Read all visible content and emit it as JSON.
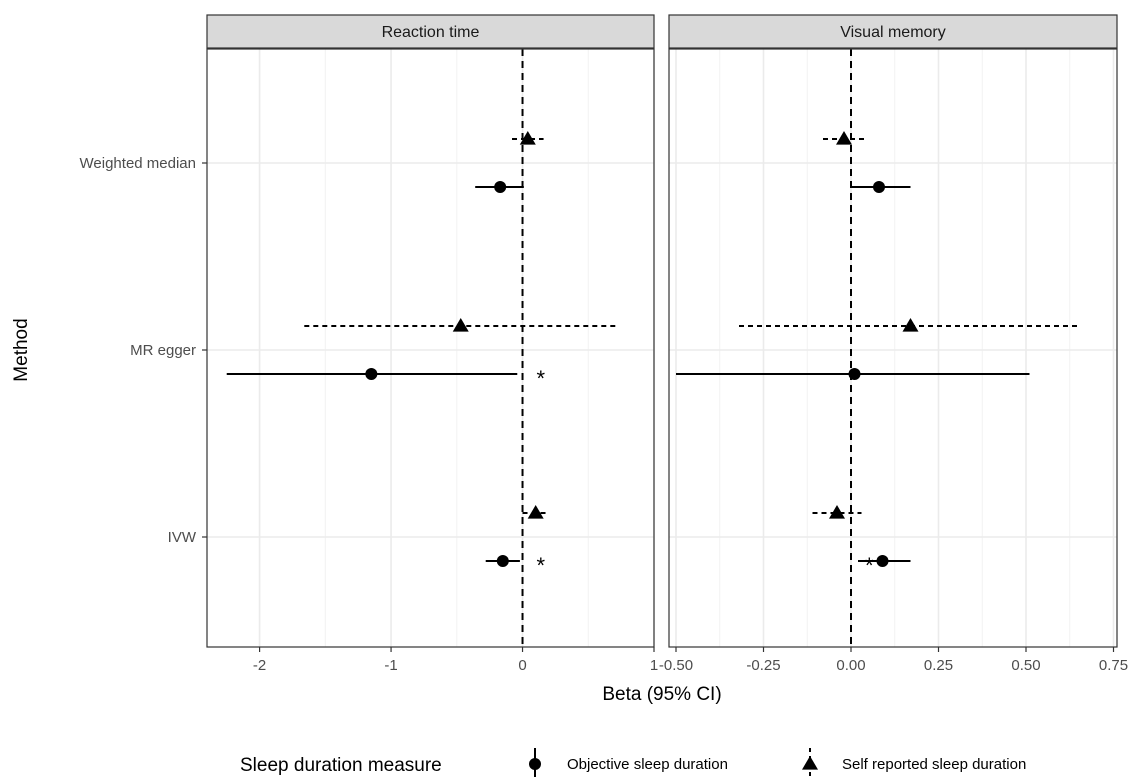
{
  "chart_data": {
    "type": "forest",
    "ylabel": "Method",
    "xlabel": "Beta (95% CI)",
    "methods": [
      "Weighted median",
      "MR egger",
      "IVW"
    ],
    "legend": {
      "title": "Sleep duration measure",
      "placement": "bottom",
      "entries": [
        {
          "key": "objective",
          "label": "Objective sleep duration",
          "marker": "circle",
          "line": "solid"
        },
        {
          "key": "self",
          "label": "Self reported sleep duration",
          "marker": "triangle",
          "line": "dashed"
        }
      ]
    },
    "panels": [
      {
        "title": "Reaction time",
        "xlim": [
          -2.4,
          1.0
        ],
        "ticks": [
          -2,
          -1,
          0,
          1
        ],
        "tick_labels": [
          "-2",
          "-1",
          "0",
          "1"
        ],
        "points": [
          {
            "method": "Weighted median",
            "series": "self",
            "beta": 0.04,
            "lo": -0.08,
            "hi": 0.16
          },
          {
            "method": "Weighted median",
            "series": "objective",
            "beta": -0.17,
            "lo": -0.36,
            "hi": 0.01
          },
          {
            "method": "MR egger",
            "series": "self",
            "beta": -0.47,
            "lo": -1.66,
            "hi": 0.72
          },
          {
            "method": "MR egger",
            "series": "objective",
            "beta": -1.15,
            "lo": -2.25,
            "hi": -0.04,
            "annotation": "*"
          },
          {
            "method": "IVW",
            "series": "self",
            "beta": 0.1,
            "lo": 0.0,
            "hi": 0.2
          },
          {
            "method": "IVW",
            "series": "objective",
            "beta": -0.15,
            "lo": -0.28,
            "hi": -0.02,
            "annotation": "*"
          }
        ]
      },
      {
        "title": "Visual memory",
        "xlim": [
          -0.52,
          0.76
        ],
        "ticks": [
          -0.5,
          -0.25,
          0.0,
          0.25,
          0.5,
          0.75
        ],
        "tick_labels": [
          "-0.50",
          "-0.25",
          "0.00",
          "0.25",
          "0.50",
          "0.75"
        ],
        "points": [
          {
            "method": "Weighted median",
            "series": "self",
            "beta": -0.02,
            "lo": -0.08,
            "hi": 0.04
          },
          {
            "method": "Weighted median",
            "series": "objective",
            "beta": 0.08,
            "lo": 0.0,
            "hi": 0.17
          },
          {
            "method": "MR egger",
            "series": "self",
            "beta": 0.17,
            "lo": -0.32,
            "hi": 0.65
          },
          {
            "method": "MR egger",
            "series": "objective",
            "beta": 0.01,
            "lo": -0.5,
            "hi": 0.51
          },
          {
            "method": "IVW",
            "series": "self",
            "beta": -0.04,
            "lo": -0.11,
            "hi": 0.03
          },
          {
            "method": "IVW",
            "series": "objective",
            "beta": 0.09,
            "lo": 0.02,
            "hi": 0.17,
            "annotation": "*"
          }
        ]
      }
    ]
  }
}
